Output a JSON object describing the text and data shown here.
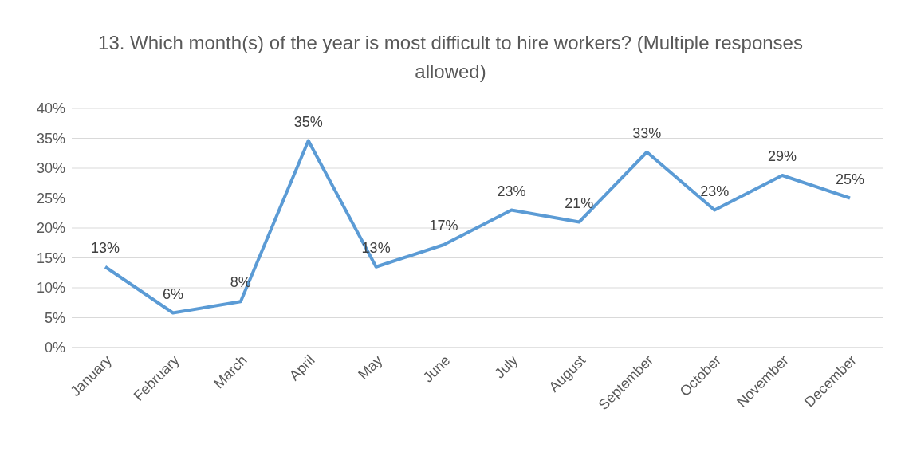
{
  "chart_data": {
    "type": "line",
    "title": "13. Which month(s) of the year is most difficult to hire workers? (Multiple responses allowed)",
    "categories": [
      "January",
      "February",
      "March",
      "April",
      "May",
      "June",
      "July",
      "August",
      "September",
      "October",
      "November",
      "December"
    ],
    "series": [
      {
        "color": "#5b9bd5",
        "values": [
          13.5,
          5.8,
          7.7,
          34.6,
          13.5,
          17.2,
          23,
          21,
          32.7,
          23,
          28.8,
          25
        ],
        "value_labels": [
          "13%",
          "6%",
          "8%",
          "35%",
          "13%",
          "17%",
          "23%",
          "21%",
          "33%",
          "23%",
          "29%",
          "25%"
        ]
      }
    ],
    "ylim": [
      0,
      40
    ],
    "yticks": [
      {
        "value": 0,
        "label": "0%"
      },
      {
        "value": 5,
        "label": "5%"
      },
      {
        "value": 10,
        "label": "10%"
      },
      {
        "value": 15,
        "label": "15%"
      },
      {
        "value": 20,
        "label": "20%"
      },
      {
        "value": 25,
        "label": "25%"
      },
      {
        "value": 30,
        "label": "30%"
      },
      {
        "value": 35,
        "label": "35%"
      },
      {
        "value": 40,
        "label": "40%"
      }
    ],
    "grid": "y",
    "marker": "none",
    "line_style": "solid",
    "legend": false
  }
}
